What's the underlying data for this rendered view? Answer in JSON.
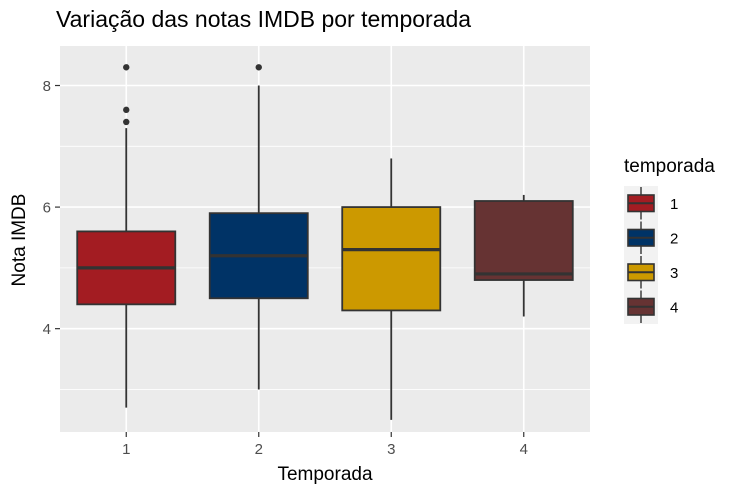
{
  "chart_data": {
    "type": "boxplot",
    "title": "Variação das notas IMDB por temporada",
    "xlabel": "Temporada",
    "ylabel": "Nota IMDB",
    "categories": [
      "1",
      "2",
      "3",
      "4"
    ],
    "y_ticks": [
      4,
      6,
      8
    ],
    "ylim": [
      2.3,
      8.65
    ],
    "grid": true,
    "legend": {
      "title": "temporada",
      "position": "right",
      "labels": [
        "1",
        "2",
        "3",
        "4"
      ]
    },
    "colors": [
      "#a31c22",
      "#003366",
      "#cc9900",
      "#663333"
    ],
    "boxes": [
      {
        "name": "1",
        "whisker_low": 2.7,
        "q1": 4.4,
        "median": 5.0,
        "q3": 5.6,
        "whisker_high": 7.3,
        "outliers": [
          7.4,
          7.6,
          8.3
        ]
      },
      {
        "name": "2",
        "whisker_low": 3.0,
        "q1": 4.5,
        "median": 5.2,
        "q3": 5.9,
        "whisker_high": 8.0,
        "outliers": [
          8.3
        ]
      },
      {
        "name": "3",
        "whisker_low": 2.5,
        "q1": 4.3,
        "median": 5.3,
        "q3": 6.0,
        "whisker_high": 6.8,
        "outliers": []
      },
      {
        "name": "4",
        "whisker_low": 4.2,
        "q1": 4.8,
        "median": 4.9,
        "q3": 6.1,
        "whisker_high": 6.2,
        "outliers": []
      }
    ]
  }
}
